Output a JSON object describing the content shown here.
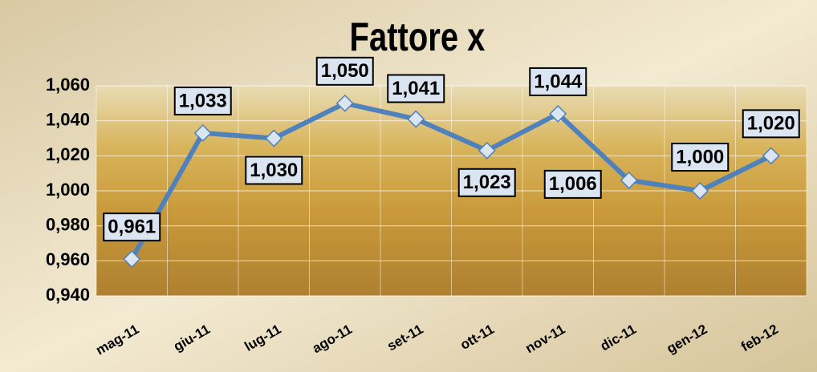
{
  "chart_data": {
    "type": "line",
    "title": "Fattore x",
    "categories": [
      "mag-11",
      "giu-11",
      "lug-11",
      "ago-11",
      "set-11",
      "ott-11",
      "nov-11",
      "dic-11",
      "gen-12",
      "feb-12"
    ],
    "series": [
      {
        "name": "Fattore x",
        "color": "#4f81bd",
        "values": [
          0.961,
          1.033,
          1.03,
          1.05,
          1.041,
          1.023,
          1.044,
          1.006,
          1.0,
          1.02
        ],
        "value_labels": [
          "0,961",
          "1,033",
          "1,030",
          "1,050",
          "1,041",
          "1,023",
          "1,044",
          "1,006",
          "1,000",
          "1,020"
        ]
      }
    ],
    "ylim": [
      0.94,
      1.06
    ],
    "yticks": [
      {
        "value": 0.94,
        "label": "0,940"
      },
      {
        "value": 0.96,
        "label": "0,960"
      },
      {
        "value": 0.98,
        "label": "0,980"
      },
      {
        "value": 1.0,
        "label": "1,000"
      },
      {
        "value": 1.02,
        "label": "1,020"
      },
      {
        "value": 1.04,
        "label": "1,040"
      },
      {
        "value": 1.06,
        "label": "1,060"
      }
    ],
    "grid": true
  }
}
